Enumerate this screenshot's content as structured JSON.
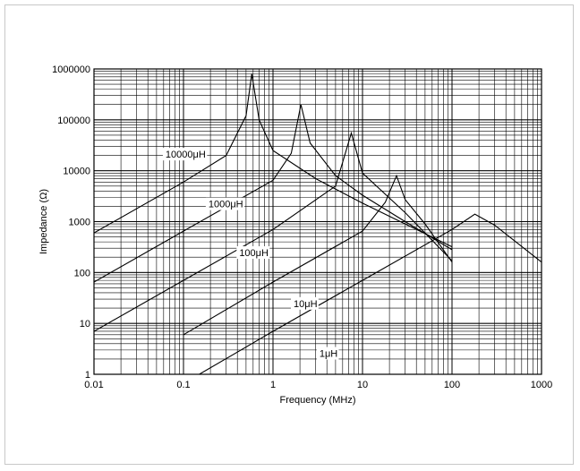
{
  "chart_data": {
    "type": "line",
    "xlabel": "Frequency (MHz)",
    "ylabel": "Impedance (Ω)",
    "x_scale": "log",
    "y_scale": "log",
    "xlim": [
      0.01,
      1000
    ],
    "ylim": [
      1,
      1000000
    ],
    "grid": true,
    "x_ticks": [
      "0.01",
      "0.1",
      "1",
      "10",
      "100",
      "1000"
    ],
    "y_ticks": [
      "1",
      "10",
      "100",
      "1000",
      "10000",
      "100000",
      "1000000"
    ],
    "series": [
      {
        "name": "10000μH",
        "x": [
          0.01,
          0.1,
          0.3,
          0.5,
          0.58,
          0.7,
          1,
          3,
          10,
          30,
          100
        ],
        "y": [
          600,
          6000,
          20000,
          120000,
          800000,
          100000,
          25000,
          7000,
          2300,
          900,
          320
        ]
      },
      {
        "name": "1000μH",
        "x": [
          0.01,
          0.1,
          1,
          1.6,
          2.05,
          2.6,
          5,
          10,
          30,
          100
        ],
        "y": [
          65,
          650,
          6500,
          22000,
          200000,
          35000,
          8000,
          3300,
          1000,
          280
        ]
      },
      {
        "name": "100μH",
        "x": [
          0.01,
          0.1,
          1,
          5,
          7.5,
          10,
          30,
          100
        ],
        "y": [
          7,
          70,
          700,
          5000,
          55000,
          9000,
          1500,
          170
        ]
      },
      {
        "name": "10μH",
        "x": [
          0.1,
          1,
          10,
          18,
          24,
          30,
          50,
          100
        ],
        "y": [
          6,
          65,
          650,
          2400,
          8000,
          2700,
          900,
          160
        ]
      },
      {
        "name": "1μH",
        "x": [
          0.15,
          1,
          10,
          100,
          180,
          300,
          1000
        ],
        "y": [
          1,
          7,
          70,
          700,
          1400,
          850,
          160
        ]
      }
    ],
    "annotations": [
      "10000μH",
      "1000μH",
      "100μH",
      "10μH",
      "1μH"
    ]
  }
}
